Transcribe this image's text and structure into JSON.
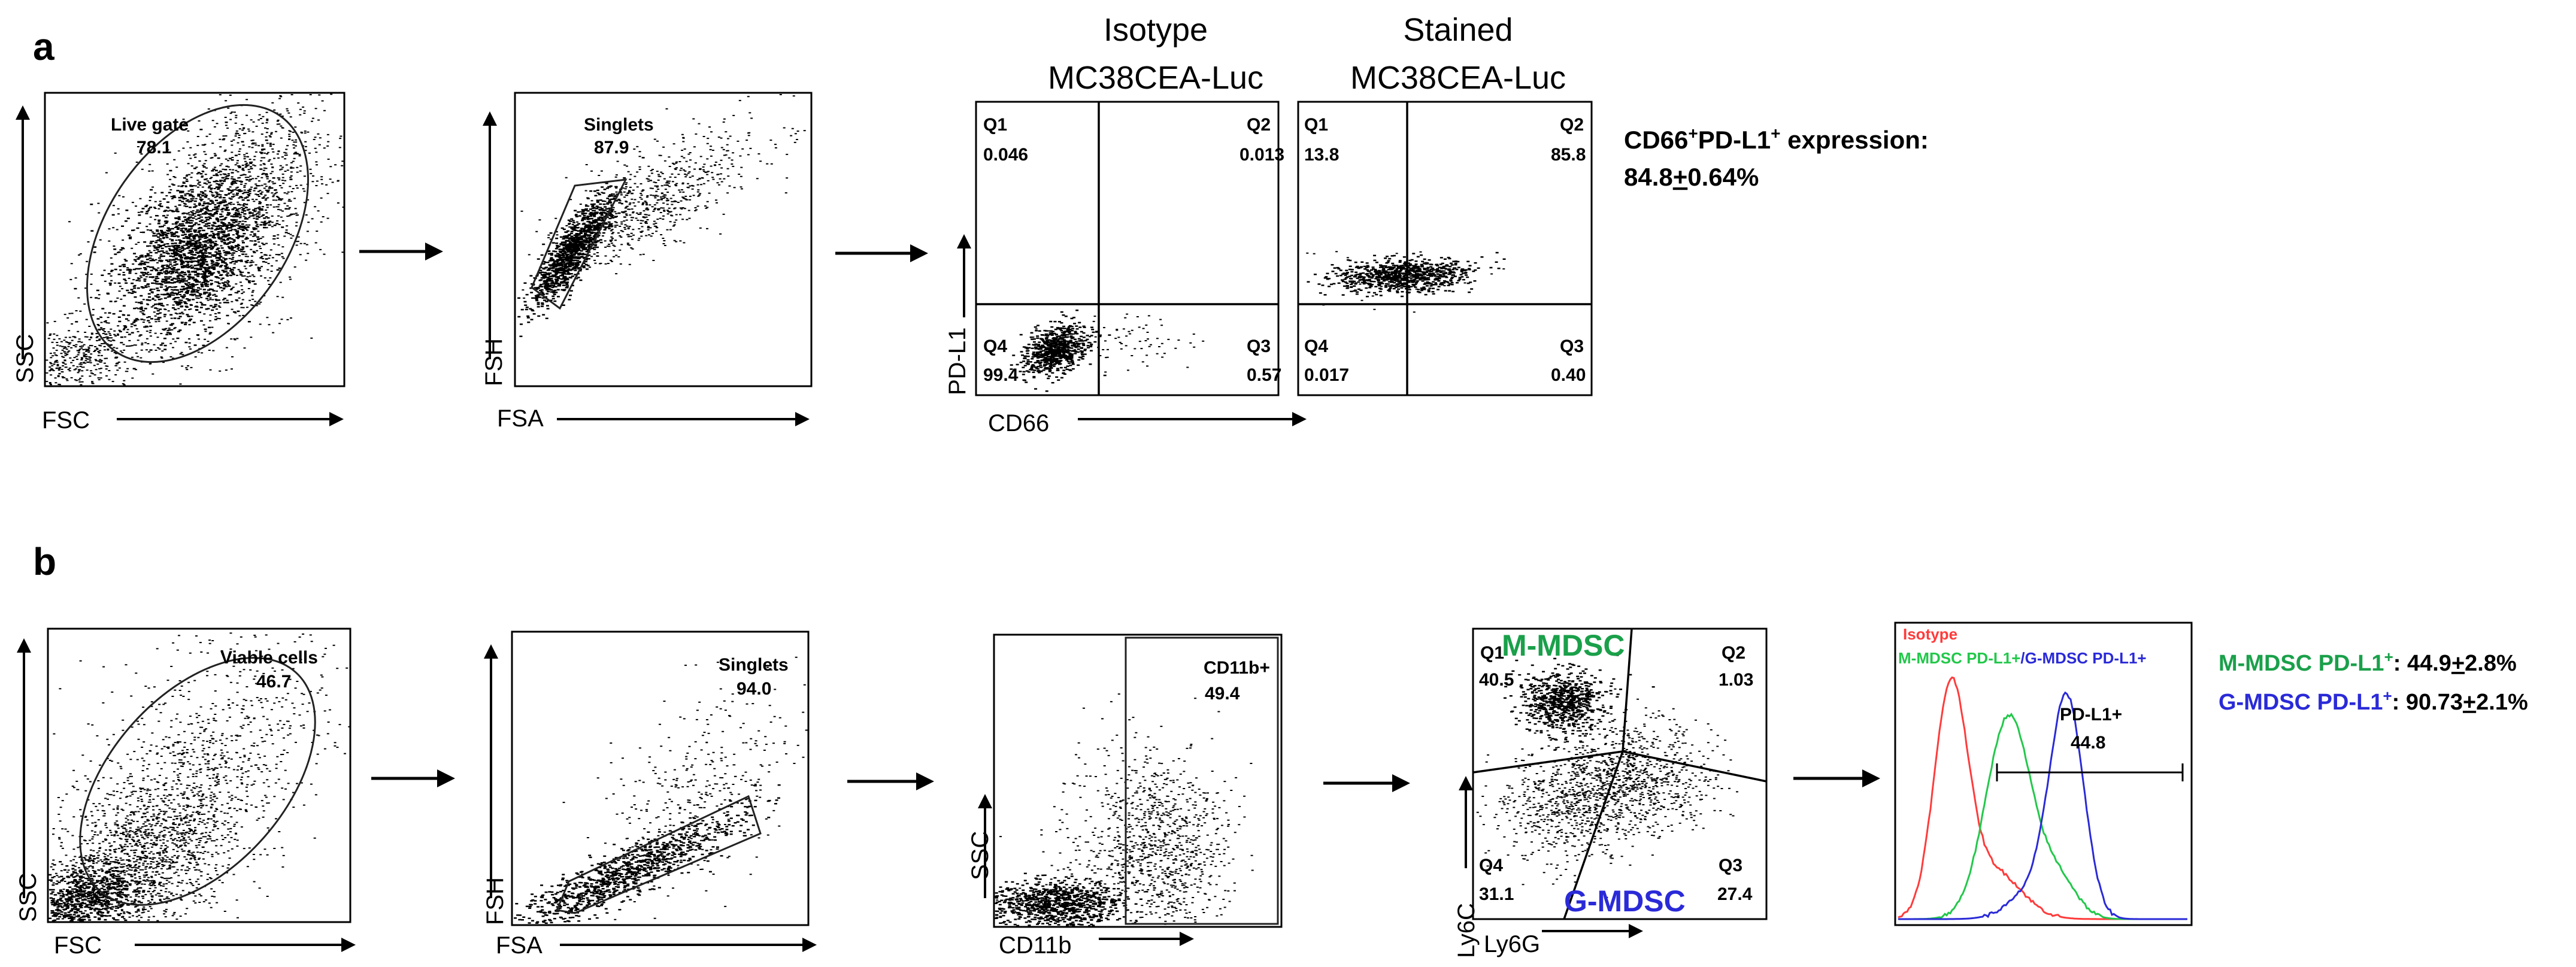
{
  "panel_a": {
    "letter": "a",
    "plots": [
      {
        "x_label": "FSC",
        "y_label": "SSC",
        "gate_name": "Live gate",
        "gate_value": "78.1"
      },
      {
        "x_label": "FSA",
        "y_label": "FSH",
        "gate_name": "Singlets",
        "gate_value": "87.9"
      }
    ],
    "isotype": {
      "header_line1": "Isotype",
      "header_line2": "MC38CEA-Luc",
      "q1": "Q1",
      "q1_value": "0.046",
      "q2": "Q2",
      "q2_value": "0.013",
      "q3": "Q3",
      "q3_value": "0.57",
      "q4": "Q4",
      "q4_value": "99.4"
    },
    "stained": {
      "header_line1": "Stained",
      "header_line2": "MC38CEA-Luc",
      "q1": "Q1",
      "q1_value": "13.8",
      "q2": "Q2",
      "q2_value": "85.8",
      "q3": "Q3",
      "q3_value": "0.40",
      "q4": "Q4",
      "q4_value": "0.017"
    },
    "quad_x_label": "CD66",
    "quad_y_label": "PD-L1",
    "summary": {
      "main": "CD66",
      "sup1": "+",
      "mid": "PD-L1",
      "sup2": "+",
      "tail": " expression:",
      "value_main": "84.8",
      "value_pm": "+",
      "value_rest": "0.64%"
    }
  },
  "panel_b": {
    "letter": "b",
    "plots": [
      {
        "x_label": "FSC",
        "y_label": "SSC",
        "gate_name": "Viable cells",
        "gate_value": "46.7"
      },
      {
        "x_label": "FSA",
        "y_label": "FSH",
        "gate_name": "Singlets",
        "gate_value": "94.0"
      },
      {
        "x_label": "CD11b",
        "y_label": "SSC",
        "gate_name": "CD11b+",
        "gate_value": "49.4"
      }
    ],
    "mdsc_plot": {
      "x_label": "Ly6G",
      "y_label": "Ly6C",
      "m_mdsc": "M-MDSC",
      "g_mdsc": "G-MDSC",
      "q1": "Q1",
      "q1_value": "40.5",
      "q2": "Q2",
      "q2_value": "1.03",
      "q3": "Q3",
      "q3_value": "27.4",
      "q4": "Q4",
      "q4_value": "31.1"
    },
    "histogram": {
      "isotype_label": "Isotype",
      "m_label": "M-MDSC PD-L1+",
      "slash": "/",
      "g_label": "G-MDSC  PD-L1+",
      "gate_name": "PD-L1+",
      "gate_value": "44.8"
    },
    "summary": [
      {
        "name": "M-MDSC",
        "mid": " PD-L1",
        "sup": "+",
        "colon": ": ",
        "value_main": "44.9",
        "value_pm": "+",
        "value_rest": "2.8%"
      },
      {
        "name": "G-MDSC",
        "mid": " PD-L1",
        "sup": "+",
        "colon": ": ",
        "value_main": "90.73",
        "value_pm": "+",
        "value_rest": "2.1%"
      }
    ]
  },
  "colors": {
    "isotype": "#ff3b3b",
    "m_mdsc": "#22c84a",
    "g_mdsc": "#2a2ad8",
    "m_mdsc_text": "#1aa04a",
    "g_mdsc_text": "#2a2ad8",
    "ink": "#000000"
  }
}
